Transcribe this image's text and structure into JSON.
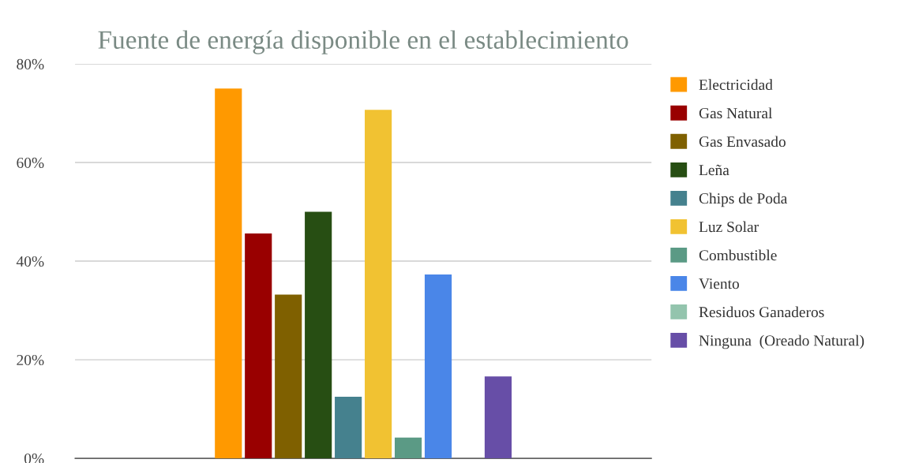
{
  "chart_data": {
    "type": "bar",
    "title": "Fuente de energía disponible en el establecimiento",
    "categories": [
      null
    ],
    "series": [
      {
        "name": "Electricidad",
        "color": "#ff9900",
        "values": [
          75
        ]
      },
      {
        "name": "Gas Natural",
        "color": "#990000",
        "values": [
          45.6
        ]
      },
      {
        "name": "Gas Envasado",
        "color": "#7f6000",
        "values": [
          33.2
        ]
      },
      {
        "name": "Leña",
        "color": "#274e13",
        "values": [
          50
        ]
      },
      {
        "name": "Chips de Poda",
        "color": "#45818e",
        "values": [
          12.5
        ]
      },
      {
        "name": "Luz Solar",
        "color": "#f1c232",
        "values": [
          70.7
        ]
      },
      {
        "name": "Combustible",
        "color": "#5b9a85",
        "values": [
          4.2
        ]
      },
      {
        "name": "Viento",
        "color": "#4a86e8",
        "values": [
          37.3
        ]
      },
      {
        "name": "Residuos Ganaderos",
        "color": "#93c4ad",
        "values": [
          0
        ]
      },
      {
        "name": "Ninguna  (Oreado Natural)",
        "color": "#674ea7",
        "values": [
          16.6
        ]
      }
    ],
    "ylim": [
      0,
      80
    ],
    "yticks": [
      {
        "value": 0,
        "label": "0%"
      },
      {
        "value": 20,
        "label": "20%"
      },
      {
        "value": 40,
        "label": "40%"
      },
      {
        "value": 60,
        "label": "60%"
      },
      {
        "value": 80,
        "label": "80%"
      }
    ],
    "grid": "y",
    "legend": "right"
  }
}
